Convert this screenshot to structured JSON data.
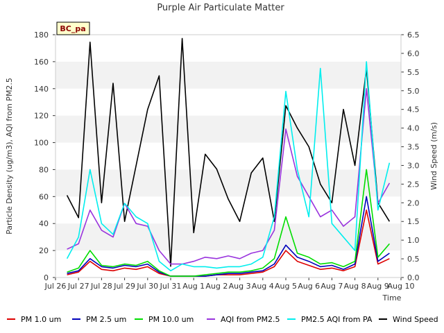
{
  "chart_data": {
    "type": "line",
    "title": "Purple Air Particulate Matter",
    "xlabel": "Time",
    "ylabel": "Particle Density (ug/m3), AQI from PM2.5",
    "y2label": "Wind Speed (m/s)",
    "ylim": [
      0,
      180
    ],
    "y2lim": [
      0,
      6.5
    ],
    "xlim": [
      0,
      15
    ],
    "yticks": [
      0,
      20,
      40,
      60,
      80,
      100,
      120,
      140,
      160,
      180
    ],
    "y2ticks": [
      "0.0",
      "0.5",
      "1.0",
      "1.5",
      "2.0",
      "2.5",
      "3.0",
      "3.5",
      "4.0",
      "4.5",
      "5.0",
      "5.5",
      "6.0",
      "6.5"
    ],
    "xtick_labels": [
      "Jul 26",
      "Jul 27",
      "Jul 28",
      "Jul 29",
      "Jul 30",
      "Jul 31",
      "Aug 1",
      "Aug 2",
      "Aug 3",
      "Aug 4",
      "Aug 5",
      "Aug 6",
      "Aug 7",
      "Aug 8",
      "Aug 9",
      "Aug 10"
    ],
    "station_label": "BC_pa",
    "x": [
      0.5,
      1.0,
      1.5,
      2.0,
      2.5,
      3.0,
      3.5,
      4.0,
      4.5,
      5.0,
      5.5,
      6.0,
      6.5,
      7.0,
      7.5,
      8.0,
      8.5,
      9.0,
      9.5,
      10.0,
      10.5,
      11.0,
      11.5,
      12.0,
      12.5,
      13.0,
      13.5,
      14.0,
      14.5
    ],
    "series": [
      {
        "name": "PM 1.0 um",
        "color": "#dd0000",
        "axis": "left",
        "values": [
          2,
          4,
          12,
          6,
          5,
          7,
          6,
          8,
          3,
          1,
          1,
          1,
          1,
          2,
          2,
          2,
          3,
          4,
          8,
          20,
          12,
          9,
          6,
          7,
          5,
          8,
          50,
          10,
          14
        ]
      },
      {
        "name": "PM 2.5 um",
        "color": "#0000bb",
        "axis": "left",
        "values": [
          3,
          5,
          14,
          8,
          7,
          9,
          8,
          10,
          4,
          1,
          1,
          1,
          1,
          2,
          3,
          3,
          4,
          5,
          10,
          24,
          15,
          12,
          8,
          9,
          6,
          10,
          60,
          12,
          18
        ]
      },
      {
        "name": "PM 10.0 um",
        "color": "#00dd00",
        "axis": "left",
        "values": [
          4,
          7,
          20,
          9,
          8,
          10,
          9,
          12,
          5,
          1,
          1,
          1,
          2,
          3,
          4,
          4,
          5,
          7,
          14,
          45,
          18,
          15,
          10,
          11,
          8,
          12,
          80,
          15,
          25
        ]
      },
      {
        "name": "AQI from PM2.5",
        "color": "#9933dd",
        "axis": "left",
        "values": [
          21,
          25,
          50,
          35,
          30,
          55,
          40,
          38,
          20,
          10,
          10,
          12,
          15,
          14,
          16,
          14,
          18,
          20,
          35,
          110,
          75,
          60,
          45,
          50,
          38,
          45,
          140,
          55,
          70
        ]
      },
      {
        "name": "PM2.5 AQI from PA",
        "color": "#00eeee",
        "axis": "left",
        "values": [
          14,
          30,
          80,
          40,
          32,
          55,
          45,
          40,
          12,
          5,
          10,
          8,
          8,
          7,
          8,
          8,
          10,
          15,
          45,
          138,
          80,
          45,
          155,
          40,
          30,
          20,
          160,
          50,
          85
        ]
      },
      {
        "name": "Wind Speed",
        "color": "#000000",
        "axis": "right",
        "values": [
          2.2,
          1.6,
          6.3,
          2.0,
          5.2,
          1.5,
          3.0,
          4.5,
          5.4,
          0.3,
          6.4,
          1.2,
          3.3,
          2.9,
          2.1,
          1.5,
          2.8,
          3.2,
          1.5,
          4.6,
          4.0,
          3.5,
          2.5,
          2.0,
          4.5,
          3.0,
          5.6,
          2.0,
          1.5
        ]
      }
    ]
  }
}
